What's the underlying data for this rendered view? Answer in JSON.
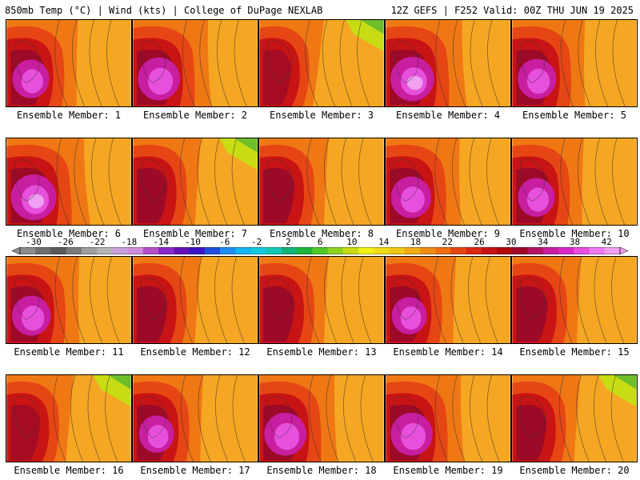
{
  "header": {
    "left": "850mb Temp (°C) | Wind (kts) | College of DuPage NEXLAB",
    "right": "12Z GEFS | F252 Valid: 00Z THU JUN 19 2025"
  },
  "members": [
    {
      "label": "Ensemble Member: 1",
      "warm": 0.7,
      "green": false
    },
    {
      "label": "Ensemble Member: 2",
      "warm": 0.85,
      "green": false
    },
    {
      "label": "Ensemble Member: 3",
      "warm": 0.4,
      "green": true
    },
    {
      "label": "Ensemble Member: 4",
      "warm": 0.9,
      "green": false
    },
    {
      "label": "Ensemble Member: 5",
      "warm": 0.75,
      "green": false
    },
    {
      "label": "Ensemble Member: 6",
      "warm": 0.95,
      "green": false
    },
    {
      "label": "Ensemble Member: 7",
      "warm": 0.55,
      "green": true
    },
    {
      "label": "Ensemble Member: 8",
      "warm": 0.6,
      "green": false
    },
    {
      "label": "Ensemble Member: 9",
      "warm": 0.8,
      "green": false
    },
    {
      "label": "Ensemble Member: 10",
      "warm": 0.7,
      "green": false
    },
    {
      "label": "Ensemble Member: 11",
      "warm": 0.75,
      "green": false
    },
    {
      "label": "Ensemble Member: 12",
      "warm": 0.55,
      "green": false
    },
    {
      "label": "Ensemble Member: 13",
      "warm": 0.6,
      "green": false
    },
    {
      "label": "Ensemble Member: 14",
      "warm": 0.65,
      "green": false
    },
    {
      "label": "Ensemble Member: 15",
      "warm": 0.6,
      "green": false
    },
    {
      "label": "Ensemble Member: 16",
      "warm": 0.5,
      "green": true
    },
    {
      "label": "Ensemble Member: 17",
      "warm": 0.65,
      "green": false
    },
    {
      "label": "Ensemble Member: 18",
      "warm": 0.85,
      "green": false
    },
    {
      "label": "Ensemble Member: 19",
      "warm": 0.85,
      "green": false
    },
    {
      "label": "Ensemble Member: 20",
      "warm": 0.55,
      "green": true
    }
  ],
  "colorbar": {
    "labels": [
      "-30",
      "-26",
      "-22",
      "-18",
      "-14",
      "-10",
      "-6",
      "-2",
      "2",
      "6",
      "10",
      "14",
      "18",
      "22",
      "26",
      "30",
      "34",
      "38",
      "42"
    ],
    "colors": [
      "#8c8c8c",
      "#6e6e6e",
      "#5a5a5a",
      "#7a7a7a",
      "#9e9e9e",
      "#b4b4b4",
      "#c8a0dc",
      "#d28cdc",
      "#b450c8",
      "#8c28c8",
      "#6414b4",
      "#3c14c8",
      "#1e50dc",
      "#1e8cf0",
      "#14b4f0",
      "#14c8dc",
      "#14c8b4",
      "#14b478",
      "#1eb43c",
      "#50c828",
      "#8cd21e",
      "#c8dc14",
      "#f0f014",
      "#f0dc14",
      "#f0c814",
      "#f0aa14",
      "#f08c14",
      "#f06e14",
      "#e64614",
      "#dc2814",
      "#c81414",
      "#b40a0a",
      "#9c0a28",
      "#b41464",
      "#c81ea0",
      "#dc28c8",
      "#e650dc",
      "#f078f0",
      "#f0a0f0"
    ]
  }
}
